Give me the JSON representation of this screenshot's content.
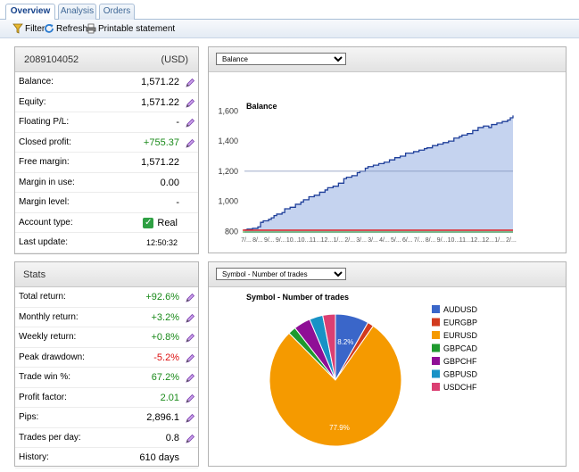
{
  "tabs": [
    {
      "label": "Overview",
      "active": true
    },
    {
      "label": "Analysis",
      "active": false
    },
    {
      "label": "Orders",
      "active": false
    }
  ],
  "toolbar": {
    "filter_label": "Filter",
    "refresh_label": "Refresh",
    "print_label": "Printable statement"
  },
  "account": {
    "number": "2089104052",
    "currency": "(USD)",
    "rows": [
      {
        "label": "Balance:",
        "value": "1,571.22",
        "style": "normal",
        "edit": true
      },
      {
        "label": "Equity:",
        "value": "1,571.22",
        "style": "normal",
        "edit": true
      },
      {
        "label": "Floating P/L:",
        "value": "-",
        "style": "normal",
        "edit": true
      },
      {
        "label": "Closed profit:",
        "value": "+755.37",
        "style": "pos",
        "edit": true
      },
      {
        "label": "Free margin:",
        "value": "1,571.22",
        "style": "normal",
        "edit": false
      },
      {
        "label": "Margin in use:",
        "value": "0.00",
        "style": "normal",
        "edit": false
      },
      {
        "label": "Margin level:",
        "value": "-",
        "style": "normal",
        "edit": false
      },
      {
        "label": "Account type:",
        "value": "Real",
        "style": "check",
        "edit": false
      },
      {
        "label": "Last update:",
        "value": "12:50:32",
        "style": "small",
        "edit": false
      }
    ]
  },
  "stats": {
    "title": "Stats",
    "rows": [
      {
        "label": "Total return:",
        "value": "+92.6%",
        "style": "pos",
        "edit": true
      },
      {
        "label": "Monthly return:",
        "value": "+3.2%",
        "style": "pos",
        "edit": true
      },
      {
        "label": "Weekly return:",
        "value": "+0.8%",
        "style": "pos",
        "edit": true
      },
      {
        "label": "Peak drawdown:",
        "value": "-5.2%",
        "style": "neg",
        "edit": true
      },
      {
        "label": "Trade win %:",
        "value": "67.2%",
        "style": "pos",
        "edit": true
      },
      {
        "label": "Profit factor:",
        "value": "2.01",
        "style": "pos",
        "edit": true
      },
      {
        "label": "Pips:",
        "value": "2,896.1",
        "style": "normal",
        "edit": true
      },
      {
        "label": "Trades per day:",
        "value": "0.8",
        "style": "normal",
        "edit": true
      },
      {
        "label": "History:",
        "value": "610 days",
        "style": "normal",
        "edit": false
      }
    ]
  },
  "balance_panel": {
    "selector_value": "Balance"
  },
  "pie_panel": {
    "selector_value": "Symbol - Number of trades"
  },
  "colors": {
    "accent": "#15428b",
    "positive": "#1a8a1a",
    "negative": "#dd1111",
    "area_fill": "#c5d3ef",
    "line": "#1f3f9a"
  },
  "chart_data": [
    {
      "type": "area",
      "title": "Balance",
      "xlabel": "",
      "ylabel": "",
      "ylim": [
        790,
        1620
      ],
      "yticks": [
        800,
        1000,
        1200,
        1400,
        1600
      ],
      "ytick_labels": [
        "800",
        "1,000",
        "1,200",
        "1,400",
        "1,600"
      ],
      "xtick_labels": [
        "7/...",
        "8/...",
        "9/...",
        "9/...",
        "10...",
        "10...",
        "11...",
        "12...",
        "1/...",
        "2/...",
        "3/...",
        "3/...",
        "4/...",
        "5/...",
        "6/...",
        "7/...",
        "8/...",
        "9/...",
        "10...",
        "11...",
        "12...",
        "12...",
        "1/...",
        "2/..."
      ],
      "x": [
        0,
        1,
        3,
        5,
        6,
        7,
        9,
        10,
        11,
        12,
        14,
        15,
        17,
        19,
        21,
        22,
        24,
        26,
        28,
        30,
        31,
        33,
        35,
        37,
        38,
        40,
        42,
        43,
        45,
        46,
        48,
        50,
        52,
        54,
        56,
        58,
        60,
        62,
        63,
        65,
        67,
        68,
        70,
        72,
        74,
        76,
        78,
        80,
        81,
        83,
        85,
        87,
        89,
        91,
        92,
        94,
        96,
        98,
        99,
        100
      ],
      "values": [
        810,
        815,
        820,
        830,
        860,
        870,
        880,
        890,
        905,
        915,
        925,
        950,
        960,
        980,
        995,
        1010,
        1030,
        1040,
        1060,
        1075,
        1090,
        1100,
        1120,
        1150,
        1160,
        1170,
        1190,
        1200,
        1220,
        1230,
        1240,
        1250,
        1260,
        1275,
        1290,
        1300,
        1320,
        1320,
        1330,
        1340,
        1350,
        1355,
        1370,
        1380,
        1390,
        1400,
        1420,
        1430,
        1440,
        1450,
        1470,
        1490,
        1500,
        1490,
        1510,
        1520,
        1530,
        1540,
        1555,
        1570
      ],
      "reference_line": 1200,
      "grid": false,
      "legend": "none"
    },
    {
      "type": "pie",
      "title": "Symbol - Number of trades",
      "categories": [
        "AUDUSD",
        "EURGBP",
        "EURUSD",
        "GBPCAD",
        "GBPCHF",
        "GBPUSD",
        "USDCHF"
      ],
      "values": [
        8.2,
        1.5,
        77.9,
        1.9,
        4.1,
        3.3,
        3.1
      ],
      "data_labels": [
        "8.2%",
        "",
        "77.9%",
        "",
        "",
        "",
        ""
      ],
      "colors": [
        "#3a66c9",
        "#d23a1e",
        "#f59a00",
        "#1e9a2e",
        "#8f0f96",
        "#1892c6",
        "#db3f72"
      ],
      "legend": "right"
    }
  ]
}
